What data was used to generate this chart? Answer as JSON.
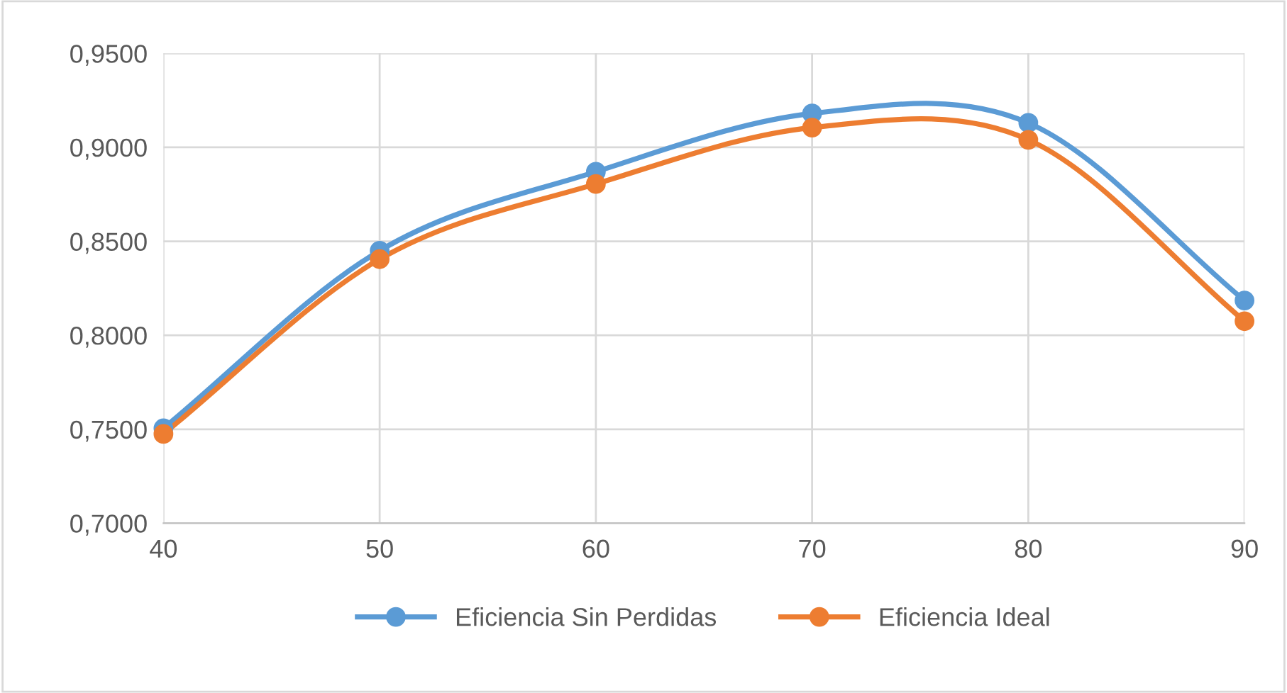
{
  "chart_data": {
    "type": "line",
    "x": [
      40,
      50,
      60,
      70,
      80,
      90
    ],
    "series": [
      {
        "name": "Eficiencia Sin Perdidas",
        "color": "#5b9bd5",
        "values": [
          0.7505,
          0.845,
          0.887,
          0.918,
          0.913,
          0.8185
        ]
      },
      {
        "name": "Eficiencia Ideal",
        "color": "#ed7d31",
        "values": [
          0.7475,
          0.8405,
          0.8805,
          0.9105,
          0.904,
          0.8075
        ]
      }
    ],
    "xlim": [
      40,
      90
    ],
    "xticks": [
      40,
      50,
      60,
      70,
      80,
      90
    ],
    "ylim": [
      0.7,
      0.95
    ],
    "yticks": [
      {
        "value": 0.7,
        "label": "0,7000"
      },
      {
        "value": 0.75,
        "label": "0,7500"
      },
      {
        "value": 0.8,
        "label": "0,8000"
      },
      {
        "value": 0.85,
        "label": "0,8500"
      },
      {
        "value": 0.9,
        "label": "0,9000"
      },
      {
        "value": 0.95,
        "label": "0,9500"
      }
    ],
    "grid": true,
    "legend": "bottom",
    "marker": "circle",
    "line_style": "solid"
  }
}
